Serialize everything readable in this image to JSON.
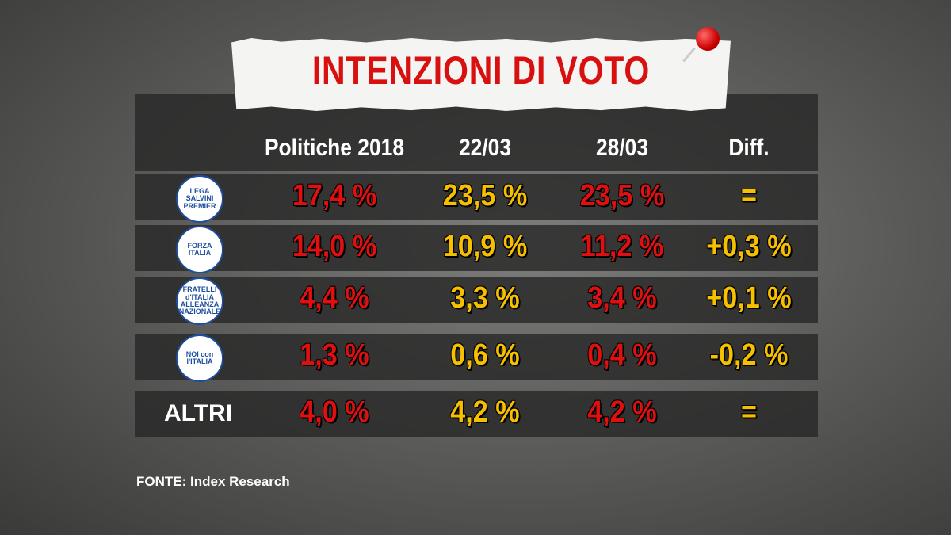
{
  "header": {
    "title": "INTENZIONI DI VOTO"
  },
  "table": {
    "columns": [
      "Politiche 2018",
      "22/03",
      "28/03",
      "Diff."
    ],
    "rows": [
      {
        "logo": [
          "LEGA",
          "SALVINI",
          "PREMIER"
        ],
        "cells": [
          "17,4 %",
          "23,5 %",
          "23,5 %",
          "="
        ]
      },
      {
        "logo": [
          "FORZA",
          "ITALIA"
        ],
        "cells": [
          "14,0 %",
          "10,9 %",
          "11,2 %",
          "+0,3 %"
        ]
      },
      {
        "logo": [
          "FRATELLI",
          "d'ITALIA",
          "ALLEANZA NAZIONALE"
        ],
        "cells": [
          "4,4 %",
          "3,3 %",
          "3,4 %",
          "+0,1 %"
        ]
      },
      {
        "logo": [
          "NOI con",
          "l'ITALIA"
        ],
        "cells": [
          "1,3 %",
          "0,6 %",
          "0,4 %",
          "-0,2 %"
        ]
      },
      {
        "label": "ALTRI",
        "cells": [
          "4,0 %",
          "4,2 %",
          "4,2 %",
          "="
        ]
      }
    ]
  },
  "footer": {
    "source": "FONTE:  Index Research"
  }
}
